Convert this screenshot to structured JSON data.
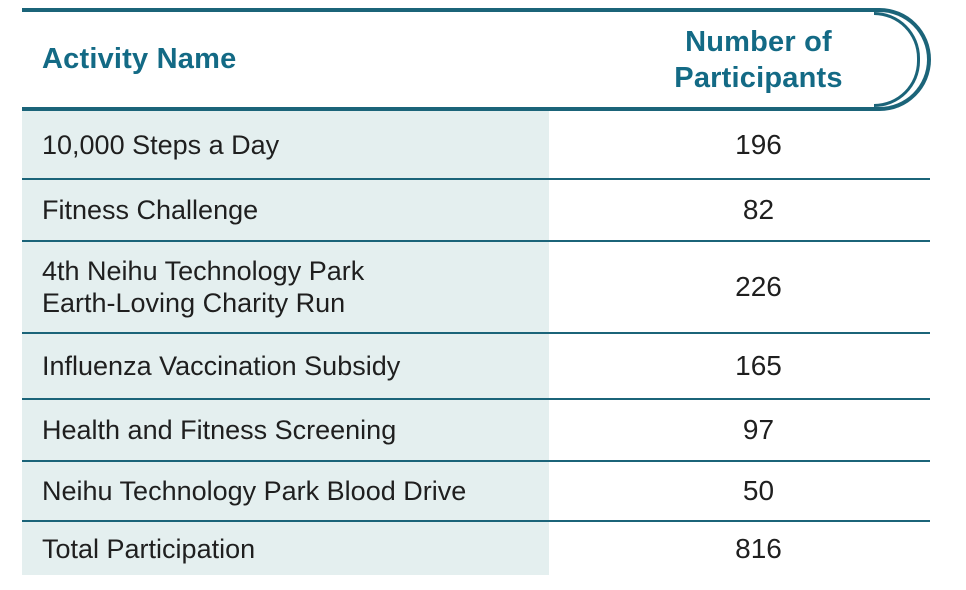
{
  "colors": {
    "accent_border": "#1b6479",
    "header_text": "#136a85",
    "row_band_bg": "#e4efef",
    "body_text": "#1f1f1f",
    "page_bg": "#ffffff"
  },
  "chart_data": {
    "type": "table",
    "columns": [
      "Activity Name",
      "Number of Participants"
    ],
    "header": {
      "activity_label": "Activity Name",
      "participants_label": "Number of\nParticipants"
    },
    "rows": [
      {
        "name": "10,000 Steps a Day",
        "participants": 196
      },
      {
        "name": "Fitness Challenge",
        "participants": 82
      },
      {
        "name": "4th Neihu Technology Park\nEarth-Loving Charity Run",
        "participants": 226
      },
      {
        "name": "Influenza Vaccination Subsidy",
        "participants": 165
      },
      {
        "name": "Health and Fitness Screening",
        "participants": 97
      },
      {
        "name": "Neihu Technology Park Blood Drive",
        "participants": 50
      },
      {
        "name": "Total Participation",
        "participants": 816
      }
    ]
  }
}
